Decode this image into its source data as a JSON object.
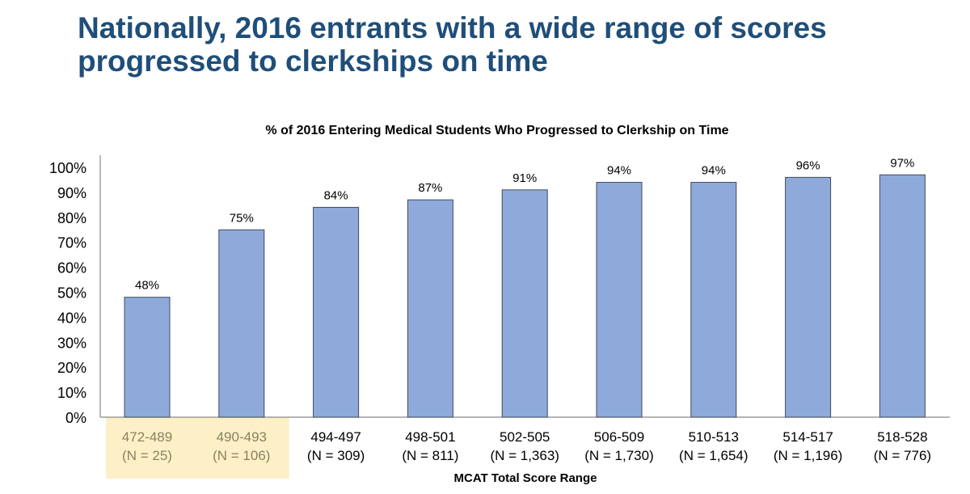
{
  "slide": {
    "title_line1": "Nationally, 2016 entrants with a wide range of scores",
    "title_line2": "progressed to clerkships on time"
  },
  "colors": {
    "title": "#1f4e79",
    "bar": "#8eaadb",
    "bar_stroke": "#3f4a5a",
    "highlight_bg": "#fdf0c6",
    "highlight_text": "#8a8164"
  },
  "chart_data": {
    "type": "bar",
    "title": "% of 2016 Entering Medical Students Who Progressed to Clerkship on Time",
    "xlabel": "MCAT Total Score Range",
    "ylabel": "",
    "ylim": [
      0,
      100
    ],
    "yticks": [
      "0%",
      "10%",
      "20%",
      "30%",
      "40%",
      "50%",
      "60%",
      "70%",
      "80%",
      "90%",
      "100%"
    ],
    "grid": false,
    "categories": [
      "472-489",
      "490-493",
      "494-497",
      "498-501",
      "502-505",
      "506-509",
      "510-513",
      "514-517",
      "518-528"
    ],
    "n_labels": [
      "(N = 25)",
      "(N = 106)",
      "(N = 309)",
      "(N = 811)",
      "(N = 1,363)",
      "(N = 1,730)",
      "(N = 1,654)",
      "(N = 1,196)",
      "(N = 776)"
    ],
    "values": [
      48,
      75,
      84,
      87,
      91,
      94,
      94,
      96,
      97
    ],
    "data_labels": [
      "48%",
      "75%",
      "84%",
      "87%",
      "91%",
      "94%",
      "94%",
      "96%",
      "97%"
    ],
    "highlighted_categories": [
      "472-489",
      "490-493"
    ]
  }
}
